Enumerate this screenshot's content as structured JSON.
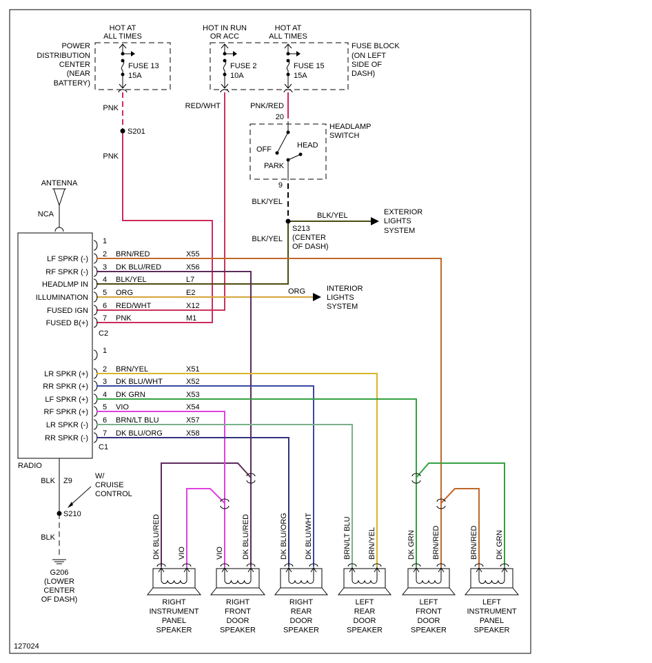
{
  "figure_id": "127024",
  "power": {
    "pdc": {
      "hot": [
        "HOT AT",
        "ALL TIMES"
      ],
      "label": [
        "POWER",
        "DISTRIBUTION",
        "CENTER",
        "(NEAR",
        "BATTERY)"
      ],
      "fuse": [
        "FUSE 13",
        "15A"
      ]
    },
    "fuse2": {
      "hot": [
        "HOT IN RUN",
        "OR ACC"
      ],
      "fuse": [
        "FUSE 2",
        "10A"
      ]
    },
    "fuse15": {
      "hot": [
        "HOT AT",
        "ALL TIMES"
      ],
      "fuse": [
        "FUSE 15",
        "15A"
      ]
    },
    "fuse_block": [
      "FUSE BLOCK",
      "(ON LEFT",
      "SIDE OF",
      "DASH)"
    ]
  },
  "wires_top": {
    "pnk1": "PNK",
    "s201": "S201",
    "pnk2": "PNK",
    "redwht": "RED/WHT",
    "pnkred": "PNK/RED",
    "pin20": "20",
    "pin9": "9",
    "blkyel1": "BLK/YEL",
    "blkyel2": "BLK/YEL",
    "blkyel3": "BLK/YEL",
    "s213": [
      "S213",
      "(CENTER",
      "OF DASH)"
    ],
    "org": "ORG"
  },
  "headlamp": {
    "label": [
      "HEADLAMP",
      "SWITCH"
    ],
    "off": "OFF",
    "head": "HEAD",
    "park": "PARK"
  },
  "exterior": [
    "EXTERIOR",
    "LIGHTS",
    "SYSTEM"
  ],
  "interior": [
    "INTERIOR",
    "LIGHTS",
    "SYSTEM"
  ],
  "antenna": {
    "label": "ANTENNA",
    "nca": "NCA"
  },
  "radio": {
    "label": "RADIO",
    "c2": {
      "name": "C2",
      "pins": [
        {
          "pin": "1",
          "func": "",
          "color": "",
          "code": ""
        },
        {
          "pin": "2",
          "func": "LF SPKR (-)",
          "color": "BRN/RED",
          "code": "X55"
        },
        {
          "pin": "3",
          "func": "RF SPKR (-)",
          "color": "DK BLU/RED",
          "code": "X56"
        },
        {
          "pin": "4",
          "func": "HEADLMP IN",
          "color": "BLK/YEL",
          "code": "L7"
        },
        {
          "pin": "5",
          "func": "ILLUMINATION",
          "color": "ORG",
          "code": "E2"
        },
        {
          "pin": "6",
          "func": "FUSED IGN",
          "color": "RED/WHT",
          "code": "X12"
        },
        {
          "pin": "7",
          "func": "FUSED B(+)",
          "color": "PNK",
          "code": "M1"
        }
      ]
    },
    "c1": {
      "name": "C1",
      "pins": [
        {
          "pin": "1",
          "func": "",
          "color": "",
          "code": ""
        },
        {
          "pin": "2",
          "func": "LR SPKR (+)",
          "color": "BRN/YEL",
          "code": "X51"
        },
        {
          "pin": "3",
          "func": "RR SPKR (+)",
          "color": "DK BLU/WHT",
          "code": "X52"
        },
        {
          "pin": "4",
          "func": "LF SPKR (+)",
          "color": "DK GRN",
          "code": "X53"
        },
        {
          "pin": "5",
          "func": "RF SPKR (+)",
          "color": "VIO",
          "code": "X54"
        },
        {
          "pin": "6",
          "func": "LR SPKR (-)",
          "color": "BRN/LT BLU",
          "code": "X57"
        },
        {
          "pin": "7",
          "func": "RR SPKR (-)",
          "color": "DK BLU/ORG",
          "code": "X58"
        }
      ]
    }
  },
  "ground": {
    "blk1": "BLK",
    "z9": "Z9",
    "cruise": [
      "W/",
      "CRUISE",
      "CONTROL"
    ],
    "s210": "S210",
    "blk2": "BLK",
    "g206": [
      "G206",
      "(LOWER",
      "CENTER",
      "OF DASH)"
    ]
  },
  "speakers": [
    {
      "name": [
        "RIGHT",
        "INSTRUMENT",
        "PANEL",
        "SPEAKER"
      ],
      "wires": [
        "DK BLU/RED",
        "VIO"
      ]
    },
    {
      "name": [
        "RIGHT",
        "FRONT",
        "DOOR",
        "SPEAKER"
      ],
      "wires": [
        "VIO",
        "DK BLU/RED"
      ]
    },
    {
      "name": [
        "RIGHT",
        "REAR",
        "DOOR",
        "SPEAKER"
      ],
      "wires": [
        "DK BLU/ORG",
        "DK BLU/WHT"
      ]
    },
    {
      "name": [
        "LEFT",
        "REAR",
        "DOOR",
        "SPEAKER"
      ],
      "wires": [
        "BRN/LT BLU",
        "BRN/YEL"
      ]
    },
    {
      "name": [
        "LEFT",
        "FRONT",
        "DOOR",
        "SPEAKER"
      ],
      "wires": [
        "DK GRN",
        "BRN/RED"
      ]
    },
    {
      "name": [
        "LEFT",
        "INSTRUMENT",
        "PANEL",
        "SPEAKER"
      ],
      "wires": [
        "BRN/RED",
        "DK GRN"
      ]
    }
  ],
  "wire_colors": {
    "pnk": "#cc2a5c",
    "redwht": "#c8325a",
    "pnkred": "#d0245a",
    "blkyel": "#4a4a10",
    "brnred": "#c0672a",
    "dkblured": "#5a2a5a",
    "org": "#d4a43a",
    "brnyel": "#d8b428",
    "dkbluwht": "#3848a0",
    "dkgrn": "#34a040",
    "vio": "#e040e0",
    "brnltblu": "#78b088",
    "dkbluorg": "#30307a",
    "blk": "#000000"
  }
}
